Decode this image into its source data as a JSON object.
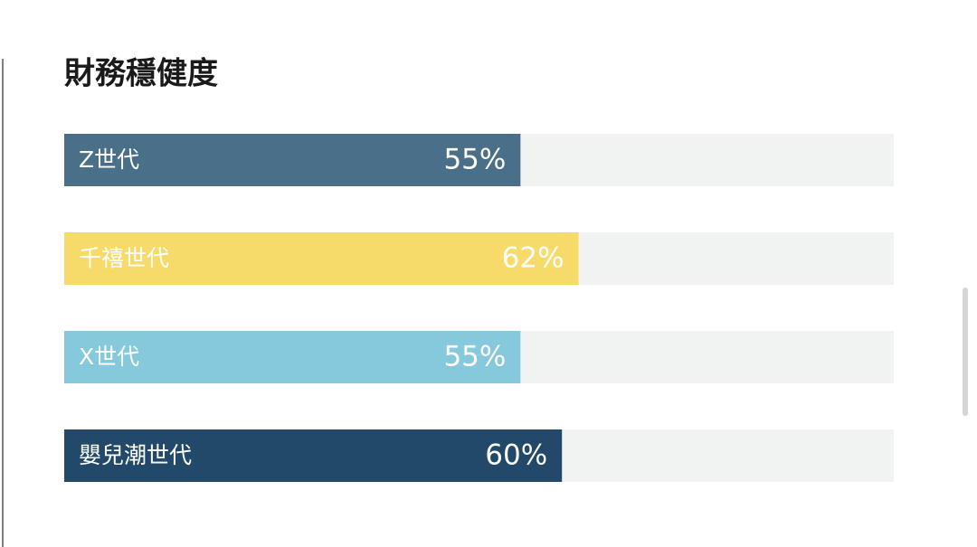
{
  "chart_data": {
    "type": "bar",
    "orientation": "horizontal",
    "title": "財務穩健度",
    "categories": [
      "Z世代",
      "千禧世代",
      "X世代",
      "嬰兒潮世代"
    ],
    "values": [
      55,
      62,
      55,
      60
    ],
    "value_labels": [
      "55%",
      "62%",
      "55%",
      "60%"
    ],
    "colors": [
      "#4a7089",
      "#f7db6a",
      "#86c8dc",
      "#22496a"
    ],
    "track_color": "#f1f3f2",
    "xlim": [
      0,
      100
    ]
  }
}
